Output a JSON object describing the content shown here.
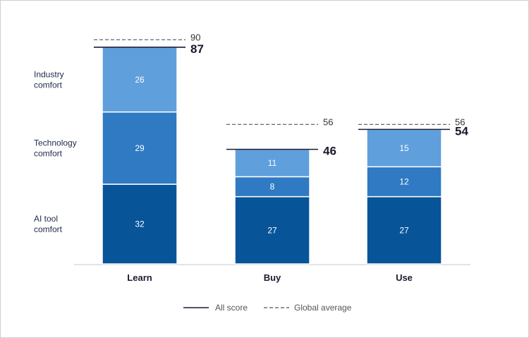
{
  "chart_data": {
    "type": "bar",
    "stacked": true,
    "categories": [
      "Learn",
      "Buy",
      "Use"
    ],
    "series": [
      {
        "name": "AI tool comfort",
        "values": [
          32,
          27,
          27
        ],
        "color": "#075499"
      },
      {
        "name": "Technology comfort",
        "values": [
          29,
          8,
          12
        ],
        "color": "#2f7ac3"
      },
      {
        "name": "Industry comfort",
        "values": [
          26,
          11,
          15
        ],
        "color": "#5f9fdc"
      }
    ],
    "totals": [
      87,
      46,
      54
    ],
    "global_average": [
      90,
      56,
      56
    ],
    "ylim": [
      0,
      100
    ],
    "legend": {
      "all_score": "All score",
      "global_average": "Global average",
      "position": "bottom-center"
    },
    "side_labels": [
      {
        "lines": [
          "Industry",
          "comfort"
        ]
      },
      {
        "lines": [
          "Technology",
          "comfort"
        ]
      },
      {
        "lines": [
          "AI tool",
          "comfort"
        ]
      }
    ],
    "colors": {
      "total_line": "#1a1a3a",
      "average_line": "#555555",
      "axis": "#c8c8c8"
    }
  }
}
